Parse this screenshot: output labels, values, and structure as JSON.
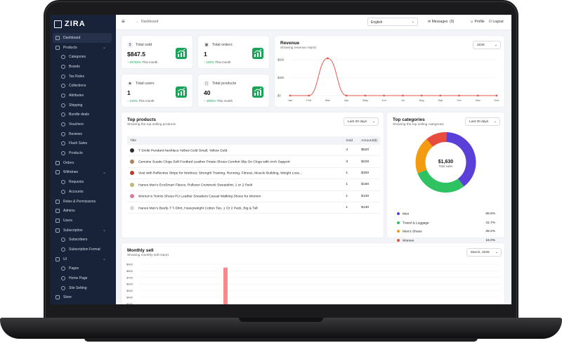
{
  "app": {
    "name": "ZIRA"
  },
  "sidebar": {
    "items": [
      {
        "label": "Dashboard",
        "level": "top",
        "active": true
      },
      {
        "label": "Products",
        "level": "top",
        "chevron": true
      },
      {
        "label": "Categories",
        "level": "sub"
      },
      {
        "label": "Brands",
        "level": "sub"
      },
      {
        "label": "Tax Rules",
        "level": "sub"
      },
      {
        "label": "Collections",
        "level": "sub"
      },
      {
        "label": "Attributes",
        "level": "sub"
      },
      {
        "label": "Shipping",
        "level": "sub"
      },
      {
        "label": "Bundle deals",
        "level": "sub"
      },
      {
        "label": "Vouchers",
        "level": "sub"
      },
      {
        "label": "Reviews",
        "level": "sub"
      },
      {
        "label": "Flash Sales",
        "level": "sub"
      },
      {
        "label": "Products",
        "level": "sub"
      },
      {
        "label": "Orders",
        "level": "top"
      },
      {
        "label": "Withdraw",
        "level": "top",
        "chevron": true
      },
      {
        "label": "Requests",
        "level": "sub"
      },
      {
        "label": "Accounts",
        "level": "sub"
      },
      {
        "label": "Roles & Permissions",
        "level": "top"
      },
      {
        "label": "Admins",
        "level": "top"
      },
      {
        "label": "Users",
        "level": "top"
      },
      {
        "label": "Subscription",
        "level": "top",
        "chevron": true
      },
      {
        "label": "Subscribers",
        "level": "sub"
      },
      {
        "label": "Subscription Format",
        "level": "sub"
      },
      {
        "label": "UI",
        "level": "top",
        "chevron": true
      },
      {
        "label": "Pages",
        "level": "sub"
      },
      {
        "label": "Home Page",
        "level": "sub"
      },
      {
        "label": "Site Setting",
        "level": "sub"
      },
      {
        "label": "Store",
        "level": "top"
      }
    ]
  },
  "topbar": {
    "breadcrumb": "Dashboard",
    "language": "English",
    "messages_label": "Messages",
    "messages_count": "(9)",
    "profile_label": "Profile",
    "logout_label": "Logout"
  },
  "stats": [
    {
      "label": "Total sold",
      "value": "$847.5",
      "trend": "84750%",
      "trend_suffix": "This month"
    },
    {
      "label": "Total orders",
      "value": "1",
      "trend": "100%",
      "trend_suffix": "This month"
    },
    {
      "label": "Total users",
      "value": "1",
      "trend": "100%",
      "trend_suffix": "This month"
    },
    {
      "label": "Total products",
      "value": "40",
      "trend": "4000%",
      "trend_suffix": "This month"
    }
  ],
  "revenue": {
    "title": "Revenue",
    "subtitle": "Showing revenue report",
    "period": "2026",
    "chart_data": {
      "type": "line",
      "categories": [
        "Jan",
        "Feb",
        "Mar",
        "Apr",
        "May",
        "Jun",
        "Jul",
        "Aug",
        "Sep",
        "Oct",
        "Nov",
        "Dec"
      ],
      "series": [
        {
          "values": [
            0,
            0,
            847.5,
            0,
            0,
            0,
            0,
            0,
            0,
            0,
            0,
            0
          ]
        }
      ],
      "yticks": [
        "$0",
        "$300",
        "$600"
      ],
      "ylim": [
        0,
        600
      ],
      "color": "#e85a4f"
    }
  },
  "top_products": {
    "title": "Top products",
    "subtitle": "Showing the top selling products",
    "period": "Last 30 days",
    "columns": {
      "title": "Title",
      "sold": "Sold",
      "amount": "Amount($)"
    },
    "rows": [
      {
        "title": "T Smile Pendant Necklace Yellow Gold Small, Yellow Gold",
        "sold": "4",
        "amount": "$520",
        "thumb": "#2b2b2b"
      },
      {
        "title": "Genuine Suede Clogs Soft Footbed Leather Potato Shoes Comfort Slip On Clogs with Arch Support",
        "sold": "3",
        "amount": "$228",
        "thumb": "#b08158"
      },
      {
        "title": "Vest with Reflective Stripe for Workout, Strength Training, Running, Fitness, Muscle Building, Weight Loss...",
        "sold": "1",
        "amount": "$300",
        "thumb": "#c0392b"
      },
      {
        "title": "Hanes Men's EcoSmart Fleece, Pullover Crewneck Sweatshirt, 1 or 2 Pack",
        "sold": "1",
        "amount": "$160",
        "thumb": "#c9b37a"
      },
      {
        "title": "Women's Tennis Shoes PU Leather Sneakers Casual Walking Shoes for Women",
        "sold": "1",
        "amount": "$130",
        "thumb": "#e07a9a"
      },
      {
        "title": "Hanes Men's Beefy-T T-Shirt, Heavyweight Cotton Tee, 1 Or 2 Pack, Big & Tall",
        "sold": "1",
        "amount": "$130",
        "thumb": "#d8d8d8"
      }
    ]
  },
  "top_categories": {
    "title": "Top categories",
    "subtitle": "Showing the top selling categories",
    "period": "Last 30 days",
    "total_value": "$1,630",
    "total_label": "Total sales",
    "chart_data": {
      "type": "pie",
      "categories": [
        "Men",
        "Travel & Luggage",
        "Men's Shoes",
        "Women"
      ],
      "values": [
        55.8,
        41.7,
        28.2,
        16.0
      ],
      "labels": [
        "55.8%",
        "41.7%",
        "28.2%",
        "16.0%"
      ],
      "colors": [
        "#5b3fd9",
        "#2ec262",
        "#f39c12",
        "#e74c3c"
      ]
    }
  },
  "monthly_sell": {
    "title": "Monthly sell",
    "subtitle": "Showing monthly sell report",
    "period": "March, 2026",
    "chart_data": {
      "type": "bar",
      "yticks": [
        "$900",
        "$800",
        "$700",
        "$600",
        "$500",
        "$400",
        "$300",
        "$200"
      ],
      "ylim": [
        200,
        900
      ],
      "values": [
        850
      ],
      "color": "#f48a8a"
    }
  }
}
